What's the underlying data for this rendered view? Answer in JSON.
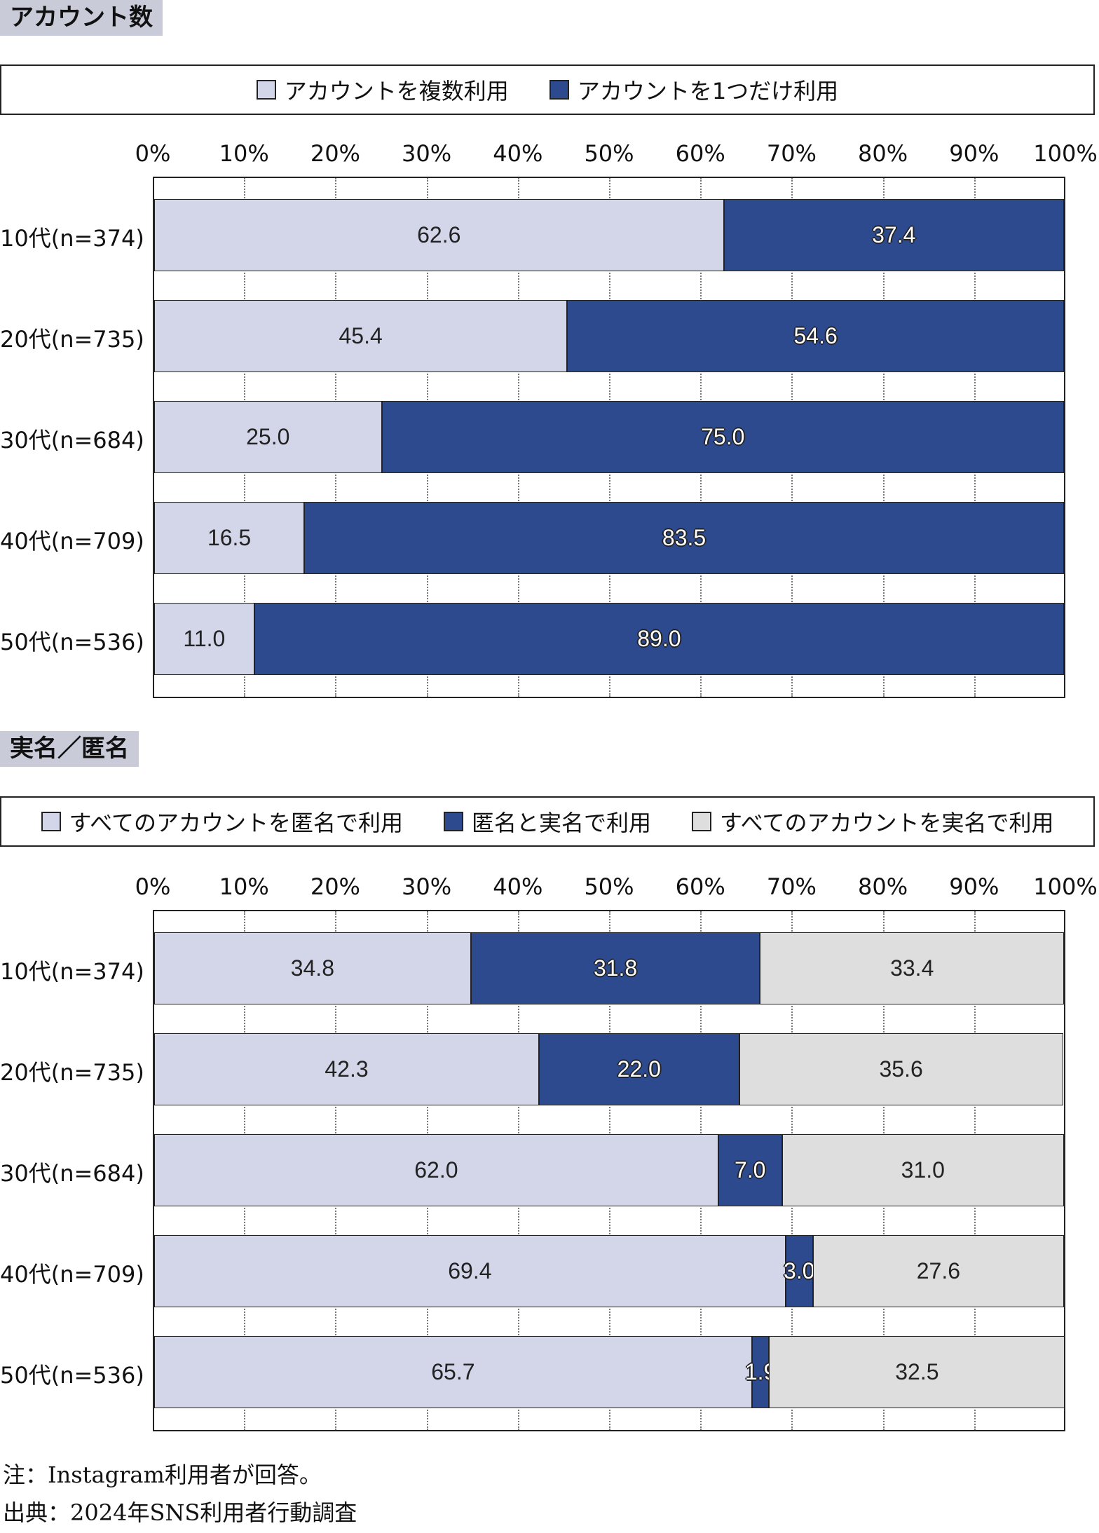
{
  "chart_data": [
    {
      "type": "bar",
      "orientation": "horizontal",
      "stacked": "100%",
      "title": "アカウント数",
      "categories": [
        "10代(n=374)",
        "20代(n=735)",
        "30代(n=684)",
        "40代(n=709)",
        "50代(n=536)"
      ],
      "series": [
        {
          "name": "アカウントを複数利用",
          "color": "#d3d6e8",
          "style": "light",
          "values": [
            "62.6",
            "45.4",
            "25.0",
            "16.5",
            "11.0"
          ]
        },
        {
          "name": "アカウントを1つだけ利用",
          "color": "#2e4a8e",
          "style": "dark",
          "values": [
            "37.4",
            "54.6",
            "75.0",
            "83.5",
            "89.0"
          ]
        }
      ],
      "xticks": [
        "0%",
        "10%",
        "20%",
        "30%",
        "40%",
        "50%",
        "60%",
        "70%",
        "80%",
        "90%",
        "100%"
      ],
      "xlim": [
        0,
        100
      ],
      "grid": true,
      "legend": "top"
    },
    {
      "type": "bar",
      "orientation": "horizontal",
      "stacked": "100%",
      "title": "実名／匿名",
      "categories": [
        "10代(n=374)",
        "20代(n=735)",
        "30代(n=684)",
        "40代(n=709)",
        "50代(n=536)"
      ],
      "series": [
        {
          "name": "すべてのアカウントを匿名で利用",
          "color": "#d3d6e8",
          "style": "light",
          "values": [
            "34.8",
            "42.3",
            "62.0",
            "69.4",
            "65.7"
          ]
        },
        {
          "name": "匿名と実名で利用",
          "color": "#2e4a8e",
          "style": "dark",
          "values": [
            "31.8",
            "22.0",
            "7.0",
            "3.0",
            "1.9"
          ]
        },
        {
          "name": "すべてのアカウントを実名で利用",
          "color": "#dedede",
          "style": "gray",
          "values": [
            "33.4",
            "35.6",
            "31.0",
            "27.6",
            "32.5"
          ]
        }
      ],
      "xticks": [
        "0%",
        "10%",
        "20%",
        "30%",
        "40%",
        "50%",
        "60%",
        "70%",
        "80%",
        "90%",
        "100%"
      ],
      "xlim": [
        0,
        100
      ],
      "grid": true,
      "legend": "top"
    }
  ],
  "notes": {
    "note": "注：Instagram利用者が回答。",
    "source": "出典：2024年SNS利用者行動調査"
  }
}
